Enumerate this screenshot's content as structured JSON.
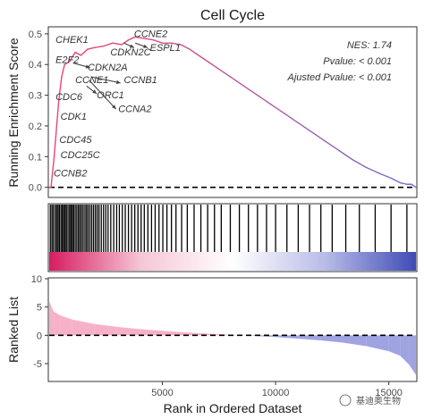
{
  "chart_data": {
    "type": "line",
    "title": "Cell Cycle",
    "xlabel": "Rank in Ordered Dataset",
    "xlim": [
      0,
      16200
    ],
    "x_ticks": [
      5000,
      10000,
      15000
    ],
    "panels": {
      "enrichment": {
        "ylabel": "Running Enrichment Score",
        "ylim": [
          -0.03,
          0.52
        ],
        "y_ticks": [
          0.0,
          0.1,
          0.2,
          0.3,
          0.4,
          0.5
        ],
        "zero_line": "dashed",
        "curve_colors": [
          "#e8457a",
          "#6d6fd0"
        ],
        "series": [
          {
            "x": [
              0,
              80,
              220,
              420,
              550,
              680,
              900,
              1150,
              1400,
              1700,
              2000,
              2400,
              2800,
              3200,
              3500,
              3800,
              4200,
              4600,
              5000,
              5400,
              5800,
              6200,
              6800,
              7400,
              8000,
              8600,
              9200,
              9800,
              10400,
              11000,
              11600,
              12200,
              12800,
              13400,
              14000,
              14600,
              15100,
              15500,
              15800,
              16000,
              16200
            ],
            "y": [
              0.0,
              0.0,
              0.1,
              0.28,
              0.36,
              0.4,
              0.41,
              0.44,
              0.43,
              0.45,
              0.455,
              0.46,
              0.47,
              0.465,
              0.48,
              0.49,
              0.485,
              0.48,
              0.47,
              0.47,
              0.465,
              0.45,
              0.42,
              0.39,
              0.36,
              0.33,
              0.3,
              0.27,
              0.24,
              0.21,
              0.18,
              0.15,
              0.12,
              0.09,
              0.065,
              0.045,
              0.03,
              0.015,
              0.01,
              0.01,
              0.0
            ]
          }
        ],
        "stats": [
          "NES: 1.74",
          "Pvalue: < 0.001",
          "Ajusted Pvalue: < 0.001"
        ],
        "labels": [
          {
            "text": "CHEK1",
            "x": 280,
            "y": 0.47
          },
          {
            "text": "E2F2",
            "x": 280,
            "y": 0.405
          },
          {
            "text": "CDKN2A",
            "x": 1700,
            "y": 0.38
          },
          {
            "text": "CCNE1",
            "x": 1150,
            "y": 0.34
          },
          {
            "text": "CCNB1",
            "x": 3300,
            "y": 0.34
          },
          {
            "text": "CDC6",
            "x": 280,
            "y": 0.285
          },
          {
            "text": "ORC1",
            "x": 2100,
            "y": 0.29
          },
          {
            "text": "CCNA2",
            "x": 3050,
            "y": 0.245
          },
          {
            "text": "CDK1",
            "x": 500,
            "y": 0.22
          },
          {
            "text": "CDC45",
            "x": 450,
            "y": 0.145
          },
          {
            "text": "CDC25C",
            "x": 500,
            "y": 0.095
          },
          {
            "text": "CCNB2",
            "x": 200,
            "y": 0.035
          },
          {
            "text": "CCNE2",
            "x": 3750,
            "y": 0.49
          },
          {
            "text": "ESPL1",
            "x": 4450,
            "y": 0.445
          },
          {
            "text": "CDKN2C",
            "x": 2700,
            "y": 0.43
          }
        ],
        "arrows": [
          {
            "from": [
              1050,
              0.405
            ],
            "to": [
              1800,
              0.39
            ]
          },
          {
            "from": [
              1850,
              0.36
            ],
            "to": [
              3150,
              0.34
            ]
          },
          {
            "from": [
              1650,
              0.33
            ],
            "to": [
              2100,
              0.305
            ]
          },
          {
            "from": [
              1750,
              0.35
            ],
            "to": [
              2950,
              0.255
            ]
          },
          {
            "from": [
              3800,
              0.47
            ],
            "to": [
              4350,
              0.455
            ]
          },
          {
            "from": [
              3300,
              0.47
            ],
            "to": [
              3750,
              0.455
            ]
          }
        ]
      },
      "hits": {
        "color_bar_stops": [
          "#d81b60",
          "#f5c6d6",
          "#ffffff",
          "#b9bde8",
          "#3f4bb5"
        ],
        "positions": [
          50,
          120,
          180,
          260,
          330,
          390,
          450,
          520,
          580,
          640,
          700,
          760,
          830,
          900,
          960,
          1020,
          1080,
          1150,
          1220,
          1290,
          1360,
          1430,
          1500,
          1580,
          1650,
          1720,
          1800,
          1880,
          1960,
          2040,
          2120,
          2200,
          2300,
          2400,
          2500,
          2600,
          2720,
          2850,
          2980,
          3100,
          3230,
          3360,
          3500,
          3640,
          3780,
          3920,
          4060,
          4200,
          4360,
          4520,
          4680,
          4850,
          5020,
          5200,
          5400,
          5600,
          5850,
          6100,
          6400,
          6700,
          7000,
          7300,
          7600,
          8000,
          8400,
          8800,
          9200,
          9600,
          10000,
          10500,
          11000,
          11500,
          12000,
          12500,
          13100,
          13700,
          14400,
          15100,
          15800
        ]
      },
      "ranked": {
        "ylabel": "Ranked List",
        "ylim": [
          -8,
          10
        ],
        "y_ticks": [
          -5,
          0,
          5,
          10
        ],
        "zero_line": "dashed",
        "pos_color": "#f4a3c0",
        "neg_color": "#8f93dc",
        "x": [
          0,
          200,
          500,
          1000,
          2000,
          3000,
          4000,
          5000,
          6000,
          7000,
          8000,
          9000,
          10000,
          11000,
          12000,
          13000,
          14000,
          15000,
          15500,
          15900,
          16200
        ],
        "y": [
          6.0,
          4.2,
          3.5,
          2.8,
          2.0,
          1.5,
          1.1,
          0.8,
          0.5,
          0.3,
          0.1,
          -0.1,
          -0.3,
          -0.6,
          -0.9,
          -1.3,
          -1.9,
          -2.8,
          -3.6,
          -5.2,
          -7.0
        ]
      }
    }
  },
  "watermark": "基迪奥生物"
}
